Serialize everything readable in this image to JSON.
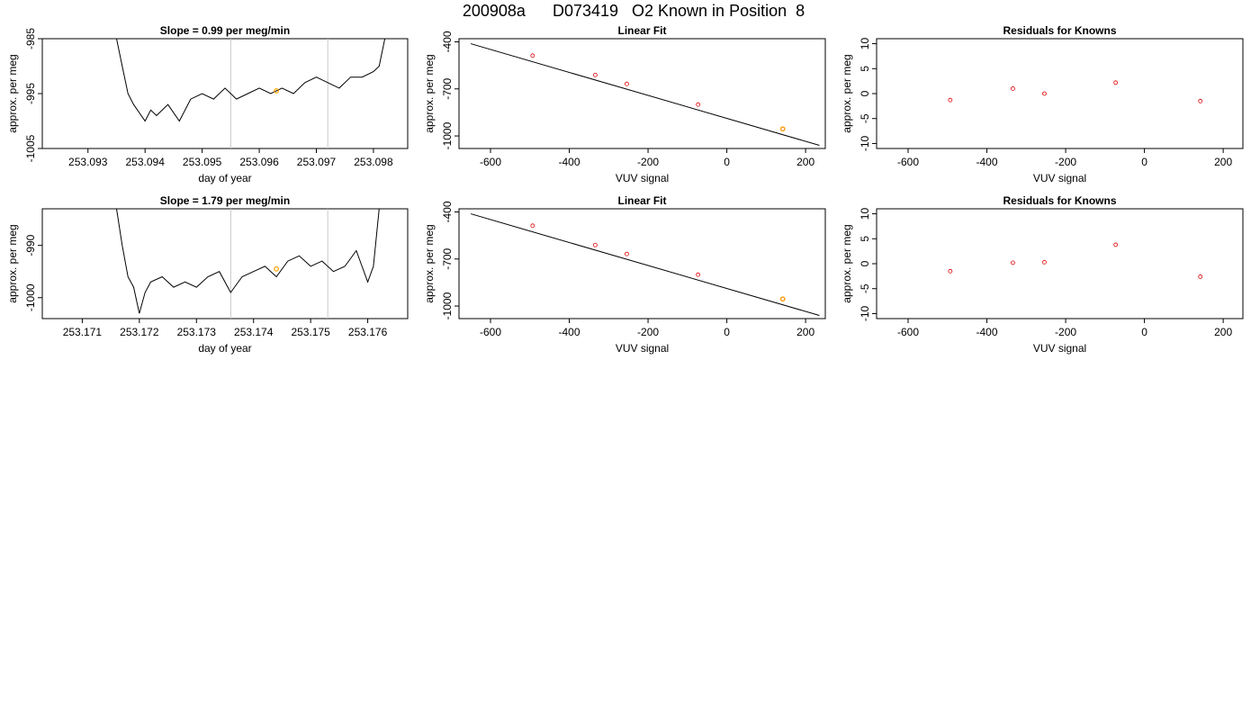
{
  "header": {
    "title": "200908a      D073419   O2 Known in Position  8"
  },
  "chart_data": [
    {
      "type": "line",
      "title": "Slope =  0.99  per meg/min",
      "xlabel": "day of year",
      "ylabel": "approx. per meg",
      "xlim": [
        253.0922,
        253.0986
      ],
      "ylim": [
        -1005,
        -985
      ],
      "x_ticks": [
        "253.093",
        "253.094",
        "253.095",
        "253.096",
        "253.097",
        "253.098"
      ],
      "x_tick_values": [
        253.093,
        253.094,
        253.095,
        253.096,
        253.097,
        253.098
      ],
      "y_ticks": [
        "-1005",
        "-995",
        "-985"
      ],
      "y_tick_values": [
        -1005,
        -995,
        -985
      ],
      "vertical_lines": [
        253.0955,
        253.0972
      ],
      "highlight_point": {
        "x": 253.0963,
        "y": -994.5,
        "color": "#ffa500"
      },
      "series": [
        {
          "color": "#000000",
          "x": [
            253.0935,
            253.0936,
            253.0937,
            253.0938,
            253.094,
            253.0941,
            253.0942,
            253.0944,
            253.0946,
            253.0948,
            253.095,
            253.0952,
            253.0954,
            253.0956,
            253.0958,
            253.096,
            253.0962,
            253.0964,
            253.0966,
            253.0968,
            253.097,
            253.0972,
            253.0974,
            253.0976,
            253.0978,
            253.098,
            253.0981,
            253.0982
          ],
          "y": [
            -985,
            -990,
            -995,
            -997,
            -1000,
            -998,
            -999,
            -997,
            -1000,
            -996,
            -995,
            -996,
            -994,
            -996,
            -995,
            -994,
            -995,
            -994,
            -995,
            -993,
            -992,
            -993,
            -994,
            -992,
            -992,
            -991,
            -990,
            -985
          ]
        }
      ]
    },
    {
      "type": "scatter",
      "title": "Linear Fit",
      "xlabel": "VUV signal",
      "ylabel": "approx. per meg",
      "xlim": [
        -680,
        250
      ],
      "ylim": [
        -1080,
        -380
      ],
      "x_ticks": [
        "-600",
        "-400",
        "-200",
        "0",
        "200"
      ],
      "x_tick_values": [
        -600,
        -400,
        -200,
        0,
        200
      ],
      "y_ticks": [
        "-400",
        "-700",
        "-1000"
      ],
      "y_tick_values": [
        -400,
        -700,
        -1000
      ],
      "points": {
        "x": [
          -493,
          -334,
          -254,
          -73,
          142
        ],
        "y": [
          -488,
          -611,
          -668,
          -800,
          -955
        ]
      },
      "highlight_point": {
        "x": 142,
        "y": -955,
        "color": "#ffa500"
      },
      "fit_line": {
        "x": [
          -650,
          235
        ],
        "y": [
          -412,
          -1060
        ]
      }
    },
    {
      "type": "scatter",
      "title": "Residuals for Knowns",
      "xlabel": "VUV signal",
      "ylabel": "approx. per meg",
      "xlim": [
        -680,
        250
      ],
      "ylim": [
        -11,
        11
      ],
      "x_ticks": [
        "-600",
        "-400",
        "-200",
        "0",
        "200"
      ],
      "x_tick_values": [
        -600,
        -400,
        -200,
        0,
        200
      ],
      "y_ticks": [
        "-10",
        "-5",
        "0",
        "5",
        "10"
      ],
      "y_tick_values": [
        -10,
        -5,
        0,
        5,
        10
      ],
      "points": {
        "x": [
          -493,
          -334,
          -254,
          -73,
          142
        ],
        "y": [
          -1.3,
          1.0,
          0.0,
          2.2,
          -1.5
        ]
      }
    },
    {
      "type": "line",
      "title": "Slope =  1.79  per meg/min",
      "xlabel": "day of year",
      "ylabel": "approx. per meg",
      "xlim": [
        253.1703,
        253.1767
      ],
      "ylim": [
        -1004,
        -983
      ],
      "x_ticks": [
        "253.171",
        "253.172",
        "253.173",
        "253.174",
        "253.175",
        "253.176"
      ],
      "x_tick_values": [
        253.171,
        253.172,
        253.173,
        253.174,
        253.175,
        253.176
      ],
      "y_ticks": [
        "-1000",
        "-990"
      ],
      "y_tick_values": [
        -1000,
        -990
      ],
      "vertical_lines": [
        253.1736,
        253.1753
      ],
      "highlight_point": {
        "x": 253.1744,
        "y": -994.5,
        "color": "#ffa500"
      },
      "series": [
        {
          "color": "#000000",
          "x": [
            253.1716,
            253.1717,
            253.1718,
            253.1719,
            253.172,
            253.1721,
            253.1722,
            253.1724,
            253.1726,
            253.1728,
            253.173,
            253.1732,
            253.1734,
            253.1736,
            253.1738,
            253.174,
            253.1742,
            253.1744,
            253.1746,
            253.1748,
            253.175,
            253.1752,
            253.1754,
            253.1756,
            253.1758,
            253.176,
            253.1761,
            253.1762
          ],
          "y": [
            -983,
            -990,
            -996,
            -998,
            -1003,
            -999,
            -997,
            -996,
            -998,
            -997,
            -998,
            -996,
            -995,
            -999,
            -996,
            -995,
            -994,
            -996,
            -993,
            -992,
            -994,
            -993,
            -995,
            -994,
            -991,
            -997,
            -994,
            -983
          ]
        }
      ]
    },
    {
      "type": "scatter",
      "title": "Linear Fit",
      "xlabel": "VUV signal",
      "ylabel": "approx. per meg",
      "xlim": [
        -680,
        250
      ],
      "ylim": [
        -1080,
        -380
      ],
      "x_ticks": [
        "-600",
        "-400",
        "-200",
        "0",
        "200"
      ],
      "x_tick_values": [
        -600,
        -400,
        -200,
        0,
        200
      ],
      "y_ticks": [
        "-400",
        "-700",
        "-1000"
      ],
      "y_tick_values": [
        -400,
        -700,
        -1000
      ],
      "points": {
        "x": [
          -493,
          -334,
          -254,
          -73,
          142
        ],
        "y": [
          -488,
          -611,
          -668,
          -800,
          -955
        ]
      },
      "highlight_point": {
        "x": 142,
        "y": -955,
        "color": "#ffa500"
      },
      "fit_line": {
        "x": [
          -650,
          235
        ],
        "y": [
          -412,
          -1060
        ]
      }
    },
    {
      "type": "scatter",
      "title": "Residuals for Knowns",
      "xlabel": "VUV signal",
      "ylabel": "approx. per meg",
      "xlim": [
        -680,
        250
      ],
      "ylim": [
        -11,
        11
      ],
      "x_ticks": [
        "-600",
        "-400",
        "-200",
        "0",
        "200"
      ],
      "x_tick_values": [
        -600,
        -400,
        -200,
        0,
        200
      ],
      "y_ticks": [
        "-10",
        "-5",
        "0",
        "5",
        "10"
      ],
      "y_tick_values": [
        -10,
        -5,
        0,
        5,
        10
      ],
      "points": {
        "x": [
          -493,
          -334,
          -254,
          -73,
          142
        ],
        "y": [
          -1.5,
          0.2,
          0.3,
          3.8,
          -2.6
        ]
      }
    }
  ]
}
